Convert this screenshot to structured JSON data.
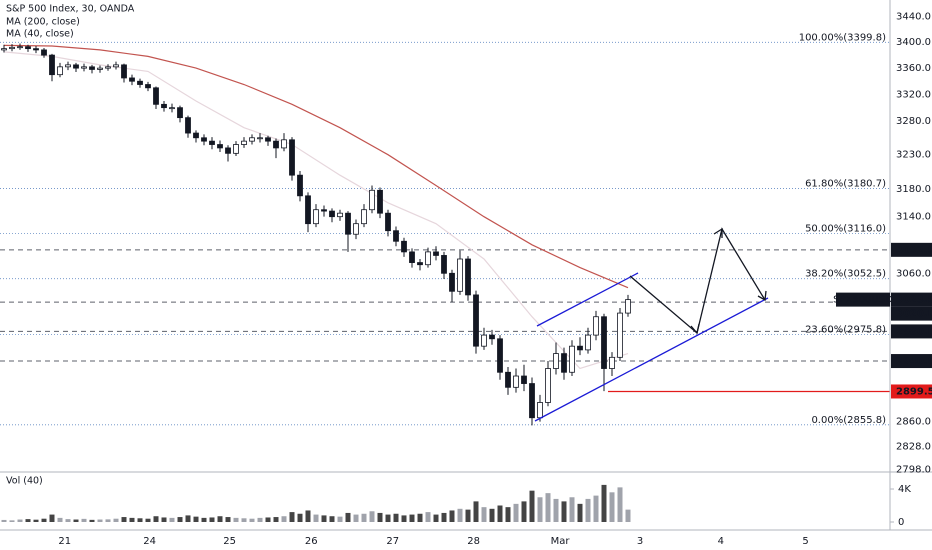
{
  "chart_data": {
    "type": "candlestick",
    "title": "S&P 500 Index, 30, OANDA",
    "log_scale": true,
    "up_color": "#ffffff",
    "down_color": "#131722",
    "outline_color": "#131722",
    "candles": [
      [
        3388,
        3396,
        3384,
        3390
      ],
      [
        3390,
        3397,
        3386,
        3392
      ],
      [
        3392,
        3398,
        3388,
        3393
      ],
      [
        3393,
        3396,
        3385,
        3390
      ],
      [
        3390,
        3394,
        3383,
        3388
      ],
      [
        3388,
        3391,
        3376,
        3380
      ],
      [
        3380,
        3382,
        3340,
        3350
      ],
      [
        3350,
        3368,
        3346,
        3362
      ],
      [
        3362,
        3370,
        3357,
        3365
      ],
      [
        3365,
        3368,
        3354,
        3360
      ],
      [
        3360,
        3367,
        3355,
        3362
      ],
      [
        3362,
        3365,
        3352,
        3358
      ],
      [
        3358,
        3364,
        3353,
        3360
      ],
      [
        3360,
        3366,
        3356,
        3362
      ],
      [
        3362,
        3370,
        3358,
        3365
      ],
      [
        3365,
        3367,
        3338,
        3345
      ],
      [
        3345,
        3350,
        3334,
        3340
      ],
      [
        3340,
        3344,
        3330,
        3335
      ],
      [
        3335,
        3339,
        3325,
        3330
      ],
      [
        3330,
        3332,
        3298,
        3305
      ],
      [
        3305,
        3310,
        3294,
        3300
      ],
      [
        3300,
        3306,
        3293,
        3300
      ],
      [
        3300,
        3303,
        3278,
        3285
      ],
      [
        3285,
        3288,
        3255,
        3262
      ],
      [
        3262,
        3266,
        3248,
        3255
      ],
      [
        3255,
        3260,
        3244,
        3250
      ],
      [
        3250,
        3256,
        3238,
        3245
      ],
      [
        3245,
        3251,
        3234,
        3240
      ],
      [
        3240,
        3244,
        3220,
        3232
      ],
      [
        3232,
        3250,
        3228,
        3245
      ],
      [
        3245,
        3256,
        3240,
        3250
      ],
      [
        3250,
        3260,
        3245,
        3255
      ],
      [
        3255,
        3262,
        3248,
        3255
      ],
      [
        3255,
        3258,
        3243,
        3250
      ],
      [
        3250,
        3254,
        3225,
        3240
      ],
      [
        3240,
        3262,
        3235,
        3252
      ],
      [
        3252,
        3256,
        3192,
        3200
      ],
      [
        3200,
        3206,
        3162,
        3170
      ],
      [
        3170,
        3175,
        3118,
        3130
      ],
      [
        3130,
        3158,
        3125,
        3150
      ],
      [
        3150,
        3156,
        3140,
        3148
      ],
      [
        3148,
        3152,
        3132,
        3140
      ],
      [
        3140,
        3150,
        3134,
        3145
      ],
      [
        3145,
        3148,
        3090,
        3115
      ],
      [
        3115,
        3136,
        3108,
        3130
      ],
      [
        3130,
        3158,
        3125,
        3150
      ],
      [
        3150,
        3185,
        3145,
        3178
      ],
      [
        3178,
        3182,
        3138,
        3145
      ],
      [
        3145,
        3150,
        3112,
        3120
      ],
      [
        3120,
        3126,
        3098,
        3105
      ],
      [
        3105,
        3110,
        3083,
        3090
      ],
      [
        3090,
        3095,
        3068,
        3075
      ],
      [
        3075,
        3080,
        3064,
        3072
      ],
      [
        3072,
        3096,
        3068,
        3090
      ],
      [
        3090,
        3098,
        3078,
        3085
      ],
      [
        3085,
        3090,
        3052,
        3060
      ],
      [
        3060,
        3065,
        3020,
        3035
      ],
      [
        3035,
        3092,
        3030,
        3080
      ],
      [
        3080,
        3084,
        3022,
        3030
      ],
      [
        3030,
        3036,
        2950,
        2960
      ],
      [
        2960,
        2985,
        2955,
        2975
      ],
      [
        2975,
        2982,
        2962,
        2970
      ],
      [
        2970,
        2975,
        2915,
        2925
      ],
      [
        2925,
        2932,
        2895,
        2905
      ],
      [
        2905,
        2930,
        2898,
        2920
      ],
      [
        2920,
        2935,
        2900,
        2910
      ],
      [
        2910,
        2918,
        2855,
        2865
      ],
      [
        2865,
        2895,
        2860,
        2885
      ],
      [
        2885,
        2940,
        2880,
        2930
      ],
      [
        2930,
        2965,
        2922,
        2950
      ],
      [
        2950,
        2958,
        2915,
        2925
      ],
      [
        2925,
        2968,
        2920,
        2960
      ],
      [
        2960,
        2972,
        2948,
        2955
      ],
      [
        2955,
        2985,
        2950,
        2975
      ],
      [
        2975,
        3008,
        2968,
        3000
      ],
      [
        3000,
        3004,
        2900,
        2930
      ],
      [
        2930,
        2952,
        2920,
        2945
      ],
      [
        2945,
        3012,
        2940,
        3005
      ],
      [
        3005,
        3030,
        3000,
        3023.5
      ]
    ],
    "moving_averages": [
      {
        "name": "MA (200, close)",
        "color": "#c2544f",
        "x": [
          0,
          6,
          12,
          18,
          24,
          30,
          36,
          42,
          48,
          54,
          60,
          66,
          72,
          78
        ],
        "values": [
          3395,
          3394,
          3388,
          3378,
          3360,
          3335,
          3305,
          3270,
          3230,
          3185,
          3140,
          3100,
          3068,
          3040
        ]
      },
      {
        "name": "MA (40, close)",
        "color": "#e6d6dc",
        "x": [
          0,
          6,
          12,
          18,
          24,
          30,
          36,
          42,
          48,
          54,
          60,
          66,
          72,
          78
        ],
        "values": [
          3385,
          3378,
          3365,
          3355,
          3310,
          3270,
          3245,
          3200,
          3160,
          3130,
          3080,
          3000,
          2930,
          2950
        ]
      }
    ],
    "volume": {
      "name": "Vol (40)",
      "color": "#444444",
      "values": [
        250,
        200,
        300,
        350,
        280,
        400,
        900,
        500,
        350,
        300,
        380,
        260,
        300,
        320,
        400,
        600,
        500,
        450,
        400,
        700,
        550,
        500,
        600,
        800,
        650,
        500,
        550,
        700,
        600,
        500,
        450,
        400,
        500,
        550,
        600,
        700,
        1200,
        1000,
        1400,
        900,
        800,
        700,
        650,
        1100,
        900,
        1000,
        1300,
        1100,
        900,
        1000,
        800,
        900,
        1000,
        1200,
        900,
        1100,
        1400,
        1600,
        1500,
        2500,
        1800,
        1600,
        2000,
        1800,
        2200,
        2500,
        3800,
        3000,
        3500,
        2800,
        2500,
        3000,
        2200,
        2800,
        3200,
        4500,
        3600,
        4200,
        1500
      ],
      "ylim": [
        0,
        5700
      ],
      "yticks": [
        0,
        {
          "value": 4000,
          "label": "4K"
        }
      ]
    },
    "xlim": [
      -0.5,
      110.75
    ],
    "xticks": [
      {
        "value": 7.6,
        "label": "21"
      },
      {
        "value": 18.2,
        "label": "24"
      },
      {
        "value": 28.2,
        "label": "25"
      },
      {
        "value": 38.4,
        "label": "26"
      },
      {
        "value": 48.6,
        "label": "27"
      },
      {
        "value": 58.7,
        "label": "28"
      },
      {
        "value": 69.5,
        "label": "Mar"
      },
      {
        "value": 79.5,
        "label": "3"
      },
      {
        "value": 89.6,
        "label": "4"
      },
      {
        "value": 100.2,
        "label": "5"
      }
    ],
    "ylim": [
      2795,
      3466
    ],
    "yticks": [
      {
        "value": 3440,
        "label": "3440.0"
      },
      {
        "value": 3400,
        "label": "3400.0"
      },
      {
        "value": 3360,
        "label": "3360.0"
      },
      {
        "value": 3320,
        "label": "3320.0"
      },
      {
        "value": 3280,
        "label": "3280.0"
      },
      {
        "value": 3230,
        "label": "3230.0"
      },
      {
        "value": 3180,
        "label": "3180.0"
      },
      {
        "value": 3140,
        "label": "3140.0"
      },
      {
        "value": 3060,
        "label": "3060.0"
      },
      {
        "value": 2860,
        "label": "2860.0"
      },
      {
        "value": 2828,
        "label": "2828.0"
      },
      {
        "value": 2798,
        "label": "2798.0"
      }
    ],
    "fib_levels": [
      {
        "value": 3399.8,
        "label": "100.00%(3399.8)"
      },
      {
        "value": 3180.7,
        "label": "61.80%(3180.7)"
      },
      {
        "value": 3116.0,
        "label": "50.00%(3116.0)"
      },
      {
        "value": 3052.5,
        "label": "38.20%(3052.5)"
      },
      {
        "value": 2975.8,
        "label": "23.60%(2975.8)"
      },
      {
        "value": 2855.8,
        "label": "0.00%(2855.8)"
      }
    ],
    "fib_color": "#3c6eb4",
    "levels": [
      {
        "value": 3092.9,
        "label": "3092.9",
        "color": "#131722"
      },
      {
        "value": 3020.0,
        "label": "3020.0",
        "color": "#131722"
      },
      {
        "value": 2980.0,
        "label": "2980.0",
        "color": "#131722"
      },
      {
        "value": 2940.0,
        "label": "2940.0",
        "color": "#131722"
      }
    ],
    "red_level": {
      "value": 2899.5,
      "label": "2899.5",
      "color": "#e21b1b"
    },
    "current_price": {
      "name": "SPX500USD",
      "value": 3023.5
    }
  }
}
